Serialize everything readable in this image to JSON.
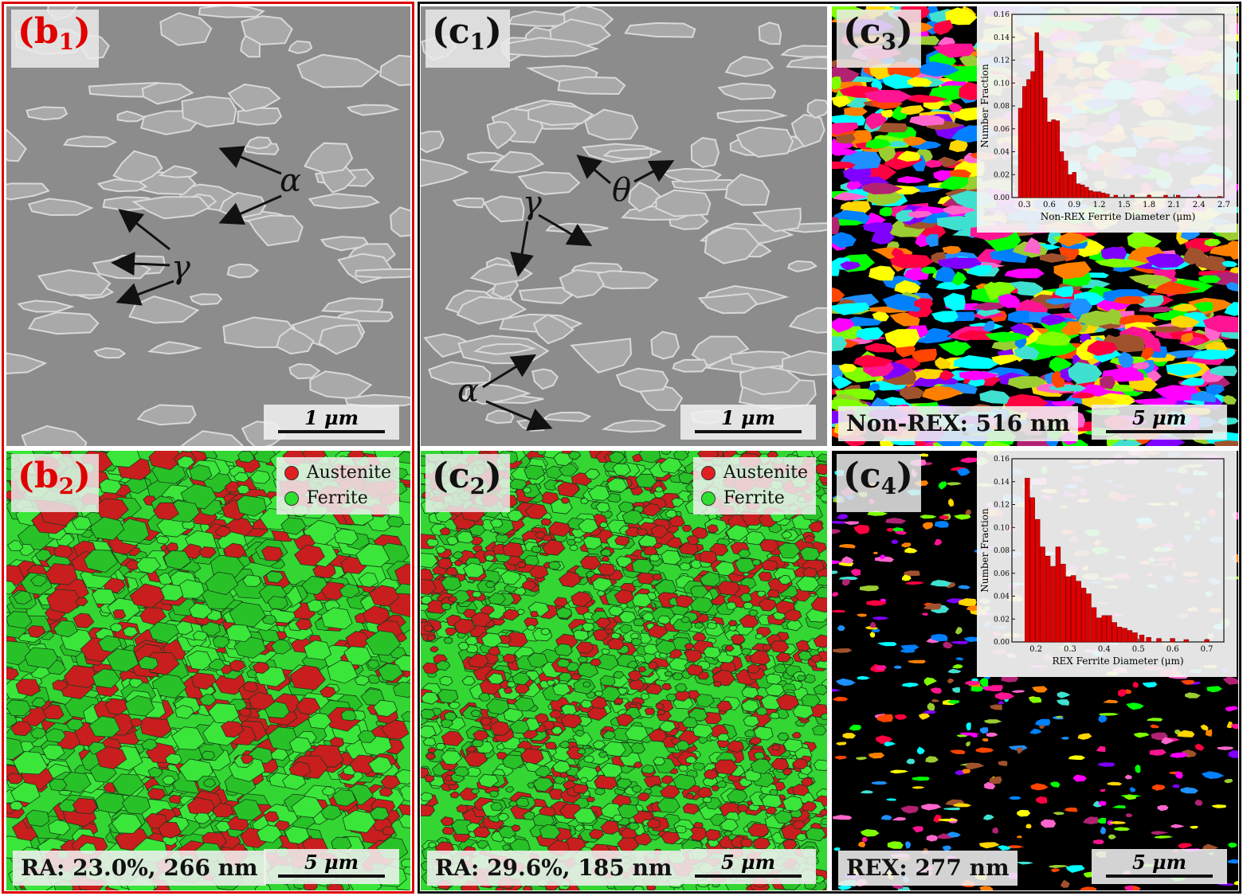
{
  "panels": {
    "b1": {
      "label_main": "(b",
      "label_sub": "1",
      "label_end": ")",
      "scale": "1 μm",
      "phase_alpha": "α",
      "phase_gamma": "γ"
    },
    "c1": {
      "label_main": "(c",
      "label_sub": "1",
      "label_end": ")",
      "scale": "1 μm",
      "phase_alpha": "α",
      "phase_gamma": "γ",
      "phase_theta": "θ"
    },
    "c3": {
      "label_main": "(c",
      "label_sub": "3",
      "label_end": ")",
      "scale": "5 μm",
      "caption": "Non-REX: 516 nm"
    },
    "b2": {
      "label_main": "(b",
      "label_sub": "2",
      "label_end": ")",
      "scale": "5 μm",
      "caption": "RA: 23.0%, 266 nm",
      "legend": [
        {
          "label": "Austenite",
          "color": "#e02020"
        },
        {
          "label": "Ferrite",
          "color": "#30e030"
        }
      ]
    },
    "c2": {
      "label_main": "(c",
      "label_sub": "2",
      "label_end": ")",
      "scale": "5 μm",
      "caption": "RA: 29.6%, 185 nm",
      "legend": [
        {
          "label": "Austenite",
          "color": "#e02020"
        },
        {
          "label": "Ferrite",
          "color": "#30e030"
        }
      ]
    },
    "c4": {
      "label_main": "(c",
      "label_sub": "4",
      "label_end": ")",
      "scale": "5 μm",
      "caption": "REX: 277 nm"
    }
  },
  "chart_data": [
    {
      "type": "bar",
      "xlabel": "Non-REX Ferrite Diameter (μm)",
      "ylabel": "Number Fraction",
      "xlim": [
        0.15,
        2.7
      ],
      "ylim": [
        0,
        0.16
      ],
      "xticks": [
        "0.3",
        "0.6",
        "0.9",
        "1.2",
        "1.5",
        "1.8",
        "2.1",
        "2.4",
        "2.7"
      ],
      "yticks": [
        "0.00",
        "0.02",
        "0.04",
        "0.06",
        "0.08",
        "0.10",
        "0.12",
        "0.14",
        "0.16"
      ],
      "bar_color": "#e00000",
      "x": [
        0.25,
        0.3,
        0.35,
        0.4,
        0.45,
        0.5,
        0.55,
        0.6,
        0.65,
        0.7,
        0.75,
        0.8,
        0.85,
        0.9,
        0.95,
        1.0,
        1.05,
        1.1,
        1.15,
        1.2,
        1.25,
        1.3,
        1.4,
        1.6,
        1.8,
        2.0,
        2.15,
        2.4,
        2.65
      ],
      "values": [
        0.078,
        0.097,
        0.103,
        0.11,
        0.144,
        0.128,
        0.087,
        0.066,
        0.068,
        0.067,
        0.04,
        0.032,
        0.02,
        0.022,
        0.012,
        0.011,
        0.009,
        0.006,
        0.005,
        0.005,
        0.004,
        0.003,
        0.002,
        0.002,
        0.002,
        0.002,
        0.002,
        0.001,
        0.001
      ]
    },
    {
      "type": "bar",
      "xlabel": "REX Ferrite Diameter (μm)",
      "ylabel": "Number Fraction",
      "xlim": [
        0.13,
        0.75
      ],
      "ylim": [
        0,
        0.16
      ],
      "xticks": [
        "0.2",
        "0.3",
        "0.4",
        "0.5",
        "0.6",
        "0.7"
      ],
      "yticks": [
        "0.00",
        "0.02",
        "0.04",
        "0.06",
        "0.08",
        "0.10",
        "0.12",
        "0.14",
        "0.16"
      ],
      "bar_color": "#e00000",
      "x": [
        0.175,
        0.19,
        0.205,
        0.22,
        0.235,
        0.25,
        0.265,
        0.28,
        0.295,
        0.31,
        0.325,
        0.34,
        0.355,
        0.37,
        0.385,
        0.4,
        0.415,
        0.43,
        0.445,
        0.46,
        0.475,
        0.49,
        0.51,
        0.53,
        0.56,
        0.6,
        0.64,
        0.7
      ],
      "values": [
        0.143,
        0.126,
        0.107,
        0.083,
        0.075,
        0.066,
        0.083,
        0.068,
        0.057,
        0.058,
        0.053,
        0.047,
        0.042,
        0.03,
        0.021,
        0.023,
        0.023,
        0.017,
        0.013,
        0.012,
        0.01,
        0.008,
        0.006,
        0.004,
        0.003,
        0.003,
        0.002,
        0.002
      ]
    }
  ]
}
